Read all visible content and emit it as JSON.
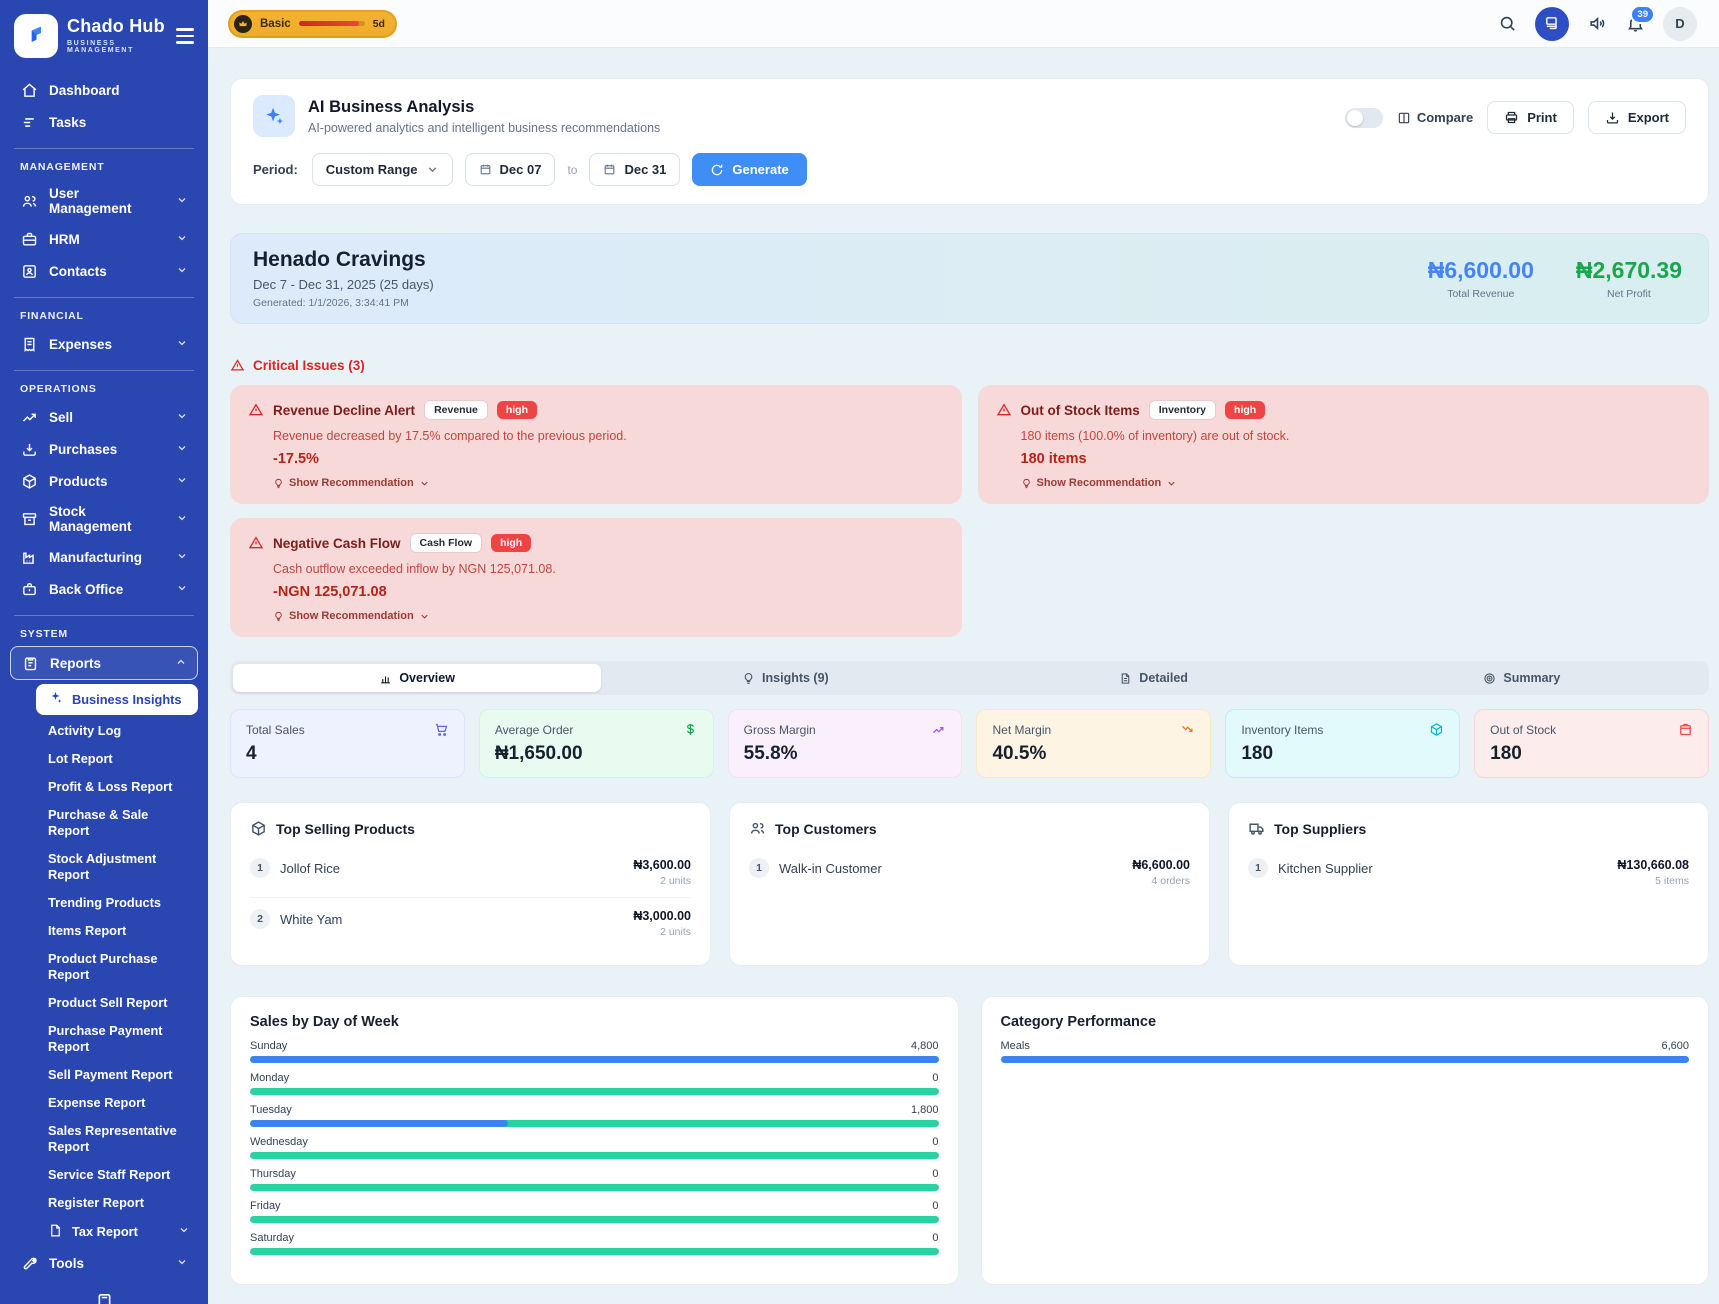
{
  "brand": {
    "name": "Chado Hub",
    "tagline": "BUSINESS MANAGEMENT"
  },
  "topbar": {
    "plan_label": "Basic",
    "plan_days": "5d",
    "notification_count": "39",
    "avatar_initial": "D"
  },
  "colors": {
    "brand_blue": "#2946b1",
    "accent_blue": "#3b82f6",
    "bar_teal": "#2dd0a2",
    "revenue_blue": "#4285f4",
    "profit_green": "#1aa64b",
    "critical_red": "#dc2626"
  },
  "sidebar": {
    "primary": [
      {
        "label": "Dashboard"
      },
      {
        "label": "Tasks"
      }
    ],
    "management_title": "MANAGEMENT",
    "management": [
      {
        "label": "User Management"
      },
      {
        "label": "HRM"
      },
      {
        "label": "Contacts"
      }
    ],
    "financial_title": "FINANCIAL",
    "financial": [
      {
        "label": "Expenses"
      }
    ],
    "operations_title": "OPERATIONS",
    "operations": [
      {
        "label": "Sell"
      },
      {
        "label": "Purchases"
      },
      {
        "label": "Products"
      },
      {
        "label": "Stock Management"
      },
      {
        "label": "Manufacturing"
      },
      {
        "label": "Back Office"
      }
    ],
    "system_title": "SYSTEM",
    "reports_label": "Reports",
    "report_items": [
      "Business Insights",
      "Activity Log",
      "Lot Report",
      "Profit & Loss Report",
      "Purchase & Sale Report",
      "Stock Adjustment Report",
      "Trending Products",
      "Items Report",
      "Product Purchase Report",
      "Product Sell Report",
      "Purchase Payment Report",
      "Sell Payment Report",
      "Expense Report",
      "Sales Representative Report",
      "Service Staff Report",
      "Register Report",
      "Tax Report"
    ],
    "tools_label": "Tools"
  },
  "analysis": {
    "title": "AI Business Analysis",
    "subtitle": "AI-powered analytics and intelligent business recommendations",
    "compare_label": "Compare",
    "print_label": "Print",
    "export_label": "Export",
    "period_label": "Period:",
    "period_value": "Custom Range",
    "date_from": "Dec 07",
    "to_word": "to",
    "date_to": "Dec 31",
    "generate_label": "Generate"
  },
  "summary": {
    "business_name": "Henado Cravings",
    "period": "Dec 7 - Dec 31, 2025 (25 days)",
    "generated": "Generated: 1/1/2026, 3:34:41 PM",
    "total_revenue": "₦6,600.00",
    "total_revenue_label": "Total Revenue",
    "net_profit": "₦2,670.39",
    "net_profit_label": "Net Profit"
  },
  "critical": {
    "title": "Critical Issues (3)",
    "issues": [
      {
        "title": "Revenue Decline Alert",
        "category": "Revenue",
        "severity": "high",
        "description": "Revenue decreased by 17.5% compared to the previous period.",
        "value": "-17.5%",
        "link": "Show Recommendation"
      },
      {
        "title": "Out of Stock Items",
        "category": "Inventory",
        "severity": "high",
        "description": "180 items (100.0% of inventory) are out of stock.",
        "value": "180 items",
        "link": "Show Recommendation"
      },
      {
        "title": "Negative Cash Flow",
        "category": "Cash Flow",
        "severity": "high",
        "description": "Cash outflow exceeded inflow by NGN 125,071.08.",
        "value": "-NGN 125,071.08",
        "link": "Show Recommendation"
      }
    ]
  },
  "tabs": [
    {
      "label": "Overview"
    },
    {
      "label": "Insights (9)"
    },
    {
      "label": "Detailed"
    },
    {
      "label": "Summary"
    }
  ],
  "metrics": [
    {
      "label": "Total Sales",
      "value": "4"
    },
    {
      "label": "Average Order",
      "value": "₦1,650.00"
    },
    {
      "label": "Gross Margin",
      "value": "55.8%"
    },
    {
      "label": "Net Margin",
      "value": "40.5%"
    },
    {
      "label": "Inventory Items",
      "value": "180"
    },
    {
      "label": "Out of Stock",
      "value": "180"
    }
  ],
  "top_products": {
    "title": "Top Selling Products",
    "items": [
      {
        "rank": "1",
        "name": "Jollof Rice",
        "amount": "₦3,600.00",
        "sub": "2 units"
      },
      {
        "rank": "2",
        "name": "White Yam",
        "amount": "₦3,000.00",
        "sub": "2 units"
      }
    ]
  },
  "top_customers": {
    "title": "Top Customers",
    "items": [
      {
        "rank": "1",
        "name": "Walk-in Customer",
        "amount": "₦6,600.00",
        "sub": "4 orders"
      }
    ]
  },
  "top_suppliers": {
    "title": "Top Suppliers",
    "items": [
      {
        "rank": "1",
        "name": "Kitchen Supplier",
        "amount": "₦130,660.08",
        "sub": "5 items"
      }
    ]
  },
  "chart_data": [
    {
      "type": "bar",
      "title": "Sales by Day of Week",
      "orientation": "horizontal",
      "categories": [
        "Sunday",
        "Monday",
        "Tuesday",
        "Wednesday",
        "Thursday",
        "Friday",
        "Saturday"
      ],
      "values": [
        4800,
        0,
        1800,
        0,
        0,
        0,
        0
      ],
      "value_labels": [
        "4,800",
        "0",
        "1,800",
        "0",
        "0",
        "0",
        "0"
      ],
      "max": 4800,
      "bar_color": "#3b82f6",
      "track_color": "#2dd0a2",
      "legend": "none",
      "grid": false
    },
    {
      "type": "bar",
      "title": "Category Performance",
      "orientation": "horizontal",
      "categories": [
        "Meals"
      ],
      "values": [
        6600
      ],
      "value_labels": [
        "6,600"
      ],
      "max": 6600,
      "bar_color": "#3b82f6",
      "track_color": "#2dd0a2",
      "legend": "none",
      "grid": false
    }
  ]
}
